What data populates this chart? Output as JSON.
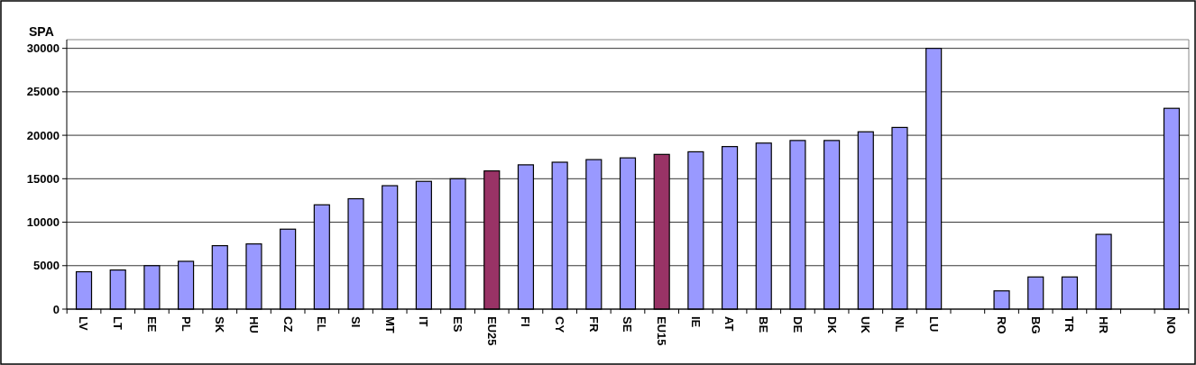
{
  "chart_data": {
    "type": "bar",
    "ylabel": "SPA",
    "categories": [
      "LV",
      "LT",
      "EE",
      "PL",
      "SK",
      "HU",
      "CZ",
      "EL",
      "SI",
      "MT",
      "IT",
      "ES",
      "EU25",
      "FI",
      "CY",
      "FR",
      "SE",
      "EU15",
      "IE",
      "AT",
      "BE",
      "DE",
      "DK",
      "UK",
      "NL",
      "LU",
      null,
      "RO",
      "BG",
      "TR",
      "HR",
      null,
      "NO"
    ],
    "values": [
      4300,
      4500,
      5000,
      5500,
      7300,
      7500,
      9200,
      12000,
      12700,
      14200,
      14700,
      15000,
      15900,
      16600,
      16900,
      17200,
      17400,
      17800,
      18100,
      18700,
      19100,
      19400,
      19400,
      20400,
      20900,
      30000,
      null,
      2100,
      3700,
      3700,
      8600,
      null,
      23100
    ],
    "colors": [
      "#9999ff",
      "#9999ff",
      "#9999ff",
      "#9999ff",
      "#9999ff",
      "#9999ff",
      "#9999ff",
      "#9999ff",
      "#9999ff",
      "#9999ff",
      "#9999ff",
      "#9999ff",
      "#993366",
      "#9999ff",
      "#9999ff",
      "#9999ff",
      "#9999ff",
      "#993366",
      "#9999ff",
      "#9999ff",
      "#9999ff",
      "#9999ff",
      "#9999ff",
      "#9999ff",
      "#9999ff",
      "#9999ff",
      null,
      "#9999ff",
      "#9999ff",
      "#9999ff",
      "#9999ff",
      null,
      "#9999ff"
    ],
    "ylim": [
      0,
      31000
    ],
    "yticks": [
      0,
      5000,
      10000,
      15000,
      20000,
      25000,
      30000
    ],
    "grid": "y"
  }
}
